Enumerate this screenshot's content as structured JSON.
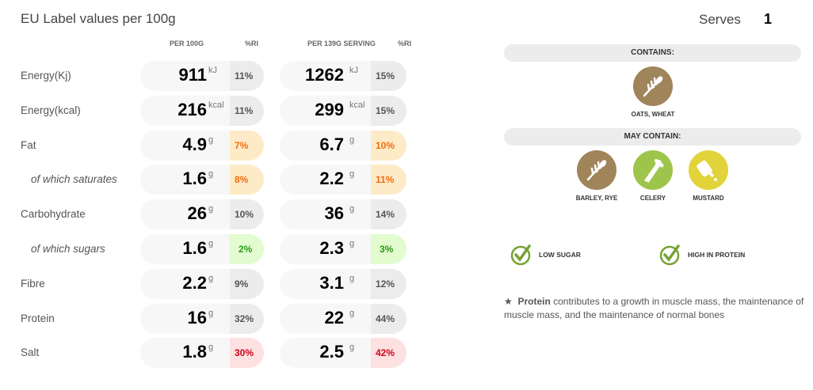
{
  "title": "EU Label values per 100g",
  "columns": {
    "per100": "PER 100G",
    "ri1": "%RI",
    "serving": "PER 139G SERVING",
    "ri2": "%RI"
  },
  "serves": {
    "label": "Serves",
    "value": "1"
  },
  "rows": [
    {
      "label": "Energy(Kj)",
      "sub": false,
      "v1": "911",
      "u1": "kJ",
      "r1": "11%",
      "v2": "1262",
      "u2": "kJ",
      "r2": "15%",
      "level": "none"
    },
    {
      "label": "Energy(kcal)",
      "sub": false,
      "v1": "216",
      "u1": "kcal",
      "r1": "11%",
      "v2": "299",
      "u2": "kcal",
      "r2": "15%",
      "level": "none"
    },
    {
      "label": "Fat",
      "sub": false,
      "v1": "4.9",
      "u1": "g",
      "r1": "7%",
      "v2": "6.7",
      "u2": "g",
      "r2": "10%",
      "level": "amber"
    },
    {
      "label": "of which saturates",
      "sub": true,
      "v1": "1.6",
      "u1": "g",
      "r1": "8%",
      "v2": "2.2",
      "u2": "g",
      "r2": "11%",
      "level": "amber"
    },
    {
      "label": "Carbohydrate",
      "sub": false,
      "v1": "26",
      "u1": "g",
      "r1": "10%",
      "v2": "36",
      "u2": "g",
      "r2": "14%",
      "level": "none"
    },
    {
      "label": "of which sugars",
      "sub": true,
      "v1": "1.6",
      "u1": "g",
      "r1": "2%",
      "v2": "2.3",
      "u2": "g",
      "r2": "3%",
      "level": "green"
    },
    {
      "label": "Fibre",
      "sub": false,
      "v1": "2.2",
      "u1": "g",
      "r1": "9%",
      "v2": "3.1",
      "u2": "g",
      "r2": "12%",
      "level": "none"
    },
    {
      "label": "Protein",
      "sub": false,
      "v1": "16",
      "u1": "g",
      "r1": "32%",
      "v2": "22",
      "u2": "g",
      "r2": "44%",
      "level": "none"
    },
    {
      "label": "Salt",
      "sub": false,
      "v1": "1.8",
      "u1": "g",
      "r1": "30%",
      "v2": "2.5",
      "u2": "g",
      "r2": "42%",
      "level": "red"
    }
  ],
  "contains": {
    "heading": "CONTAINS:",
    "items": [
      {
        "name": "OATS, WHEAT",
        "icon": "wheat-icon",
        "color": "#a0845a"
      }
    ]
  },
  "may_contain": {
    "heading": "MAY CONTAIN:",
    "items": [
      {
        "name": "BARLEY, RYE",
        "icon": "wheat-icon",
        "color": "#a0845a"
      },
      {
        "name": "CELERY",
        "icon": "celery-icon",
        "color": "#9dc54b"
      },
      {
        "name": "MUSTARD",
        "icon": "mustard-icon",
        "color": "#e2d33a"
      }
    ]
  },
  "claims": [
    {
      "label": "LOW SUGAR"
    },
    {
      "label": "HIGH IN PROTEIN"
    }
  ],
  "claim_color": "#76a233",
  "note": {
    "star": "★",
    "bold": "Protein",
    "text": " contributes to a growth in muscle mass, the maintenance of muscle mass, and the maintenance of normal bones"
  }
}
